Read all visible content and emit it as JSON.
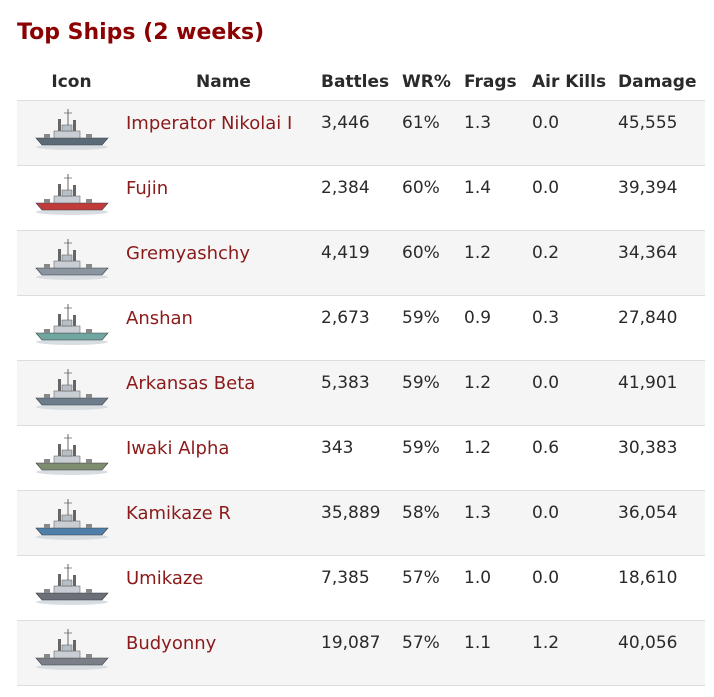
{
  "title": "Top Ships (2 weeks)",
  "columns": {
    "icon": "Icon",
    "name": "Name",
    "battles": "Battles",
    "wr": "WR%",
    "frags": "Frags",
    "air_kills": "Air Kills",
    "damage": "Damage"
  },
  "rows": [
    {
      "icon": "ship-icon",
      "name": "Imperator Nikolai I",
      "battles": "3,446",
      "wr": "61%",
      "frags": "1.3",
      "air_kills": "0.0",
      "damage": "45,555"
    },
    {
      "icon": "ship-icon",
      "name": "Fujin",
      "battles": "2,384",
      "wr": "60%",
      "frags": "1.4",
      "air_kills": "0.0",
      "damage": "39,394"
    },
    {
      "icon": "ship-icon",
      "name": "Gremyashchy",
      "battles": "4,419",
      "wr": "60%",
      "frags": "1.2",
      "air_kills": "0.2",
      "damage": "34,364"
    },
    {
      "icon": "ship-icon",
      "name": "Anshan",
      "battles": "2,673",
      "wr": "59%",
      "frags": "0.9",
      "air_kills": "0.3",
      "damage": "27,840"
    },
    {
      "icon": "ship-icon",
      "name": "Arkansas Beta",
      "battles": "5,383",
      "wr": "59%",
      "frags": "1.2",
      "air_kills": "0.0",
      "damage": "41,901"
    },
    {
      "icon": "ship-icon",
      "name": "Iwaki Alpha",
      "battles": "343",
      "wr": "59%",
      "frags": "1.2",
      "air_kills": "0.6",
      "damage": "30,383"
    },
    {
      "icon": "ship-icon",
      "name": "Kamikaze R",
      "battles": "35,889",
      "wr": "58%",
      "frags": "1.3",
      "air_kills": "0.0",
      "damage": "36,054"
    },
    {
      "icon": "ship-icon",
      "name": "Umikaze",
      "battles": "7,385",
      "wr": "57%",
      "frags": "1.0",
      "air_kills": "0.0",
      "damage": "18,610"
    },
    {
      "icon": "ship-icon",
      "name": "Budyonny",
      "battles": "19,087",
      "wr": "57%",
      "frags": "1.1",
      "air_kills": "1.2",
      "damage": "40,056"
    }
  ],
  "colors": {
    "title": "#8b0000",
    "link": "#8b1a1a",
    "row_alt": "#f5f5f5",
    "border": "#dddddd",
    "hull": [
      "#5c6b78",
      "#c23b3b",
      "#8a95a0",
      "#6fa7a0",
      "#6d7d8c",
      "#7e8c70",
      "#4f7fa8",
      "#6a6f78",
      "#7b8088"
    ]
  }
}
